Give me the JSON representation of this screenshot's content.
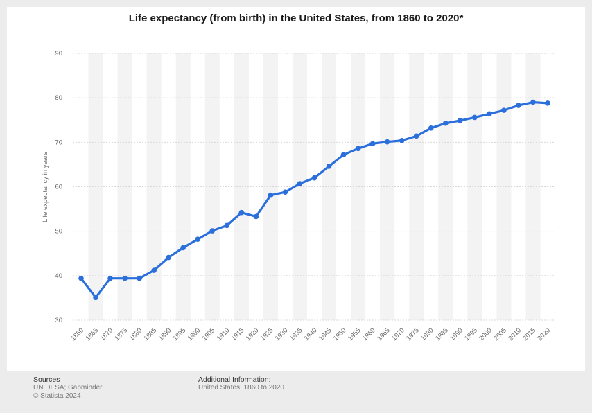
{
  "title": "Life expectancy (from birth) in the United States, from 1860 to 2020*",
  "footer": {
    "sources_heading": "Sources",
    "sources_line1": "UN DESA; Gapminder",
    "sources_line2": "© Statista 2024",
    "additional_heading": "Additional Information:",
    "additional_line1": "United States; 1860 to 2020"
  },
  "colors": {
    "line": "#2a6fdb",
    "grid": "#d8d8d8",
    "band": "#f3f3f3",
    "tick": "#666666"
  },
  "chart_data": {
    "type": "line",
    "title": "Life expectancy (from birth) in the United States, from 1860 to 2020*",
    "xlabel": "",
    "ylabel": "Life expectancy in years",
    "ylim": [
      30,
      90
    ],
    "yticks": [
      30,
      40,
      50,
      60,
      70,
      80,
      90
    ],
    "grid": true,
    "x": [
      "1860",
      "1865",
      "1870",
      "1875",
      "1880",
      "1885",
      "1890",
      "1895",
      "1900",
      "1905",
      "1910",
      "1915",
      "1920",
      "1925",
      "1930",
      "1935",
      "1940",
      "1945",
      "1950",
      "1955",
      "1960",
      "1965",
      "1970",
      "1975",
      "1980",
      "1985",
      "1990",
      "1995",
      "2000",
      "2005",
      "2010",
      "2015",
      "2020"
    ],
    "series": [
      {
        "name": "",
        "values": [
          39.4,
          35.1,
          39.4,
          39.4,
          39.4,
          41.2,
          44.1,
          46.3,
          48.2,
          50.1,
          51.3,
          54.2,
          53.3,
          58.1,
          58.8,
          60.7,
          62.0,
          64.6,
          67.2,
          68.6,
          69.7,
          70.1,
          70.4,
          71.4,
          73.2,
          74.3,
          74.9,
          75.6,
          76.4,
          77.2,
          78.3,
          79.0,
          78.8
        ]
      }
    ]
  }
}
